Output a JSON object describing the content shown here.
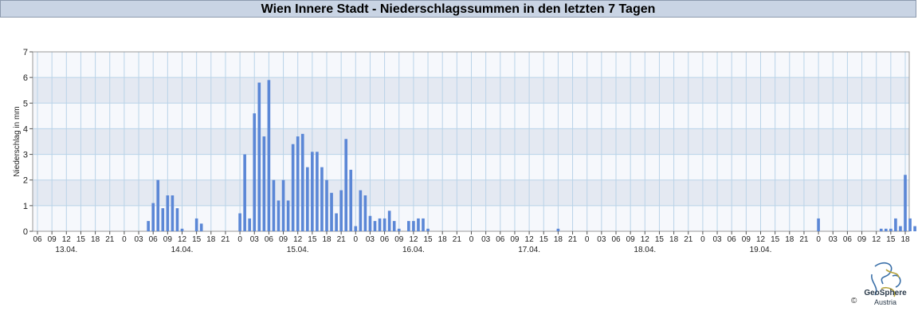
{
  "header": {
    "title": "Wien Innere Stadt - Niederschlagssummen in den letzten 7 Tagen"
  },
  "logo": {
    "name": "GeoSphere",
    "sub": "Austria",
    "copyright": "©"
  },
  "colors": {
    "bar": "#5b87d6",
    "band": "#e4e9f2",
    "plot_bg": "#f6f8fc",
    "grid": "#b9d3e8",
    "title_bg": "#c9d4e4"
  },
  "chart_data": {
    "type": "bar",
    "title": "Wien Innere Stadt - Niederschlagssummen in den letzten 7 Tagen",
    "xlabel": "",
    "ylabel": "Niederschlag in mm",
    "ylim": [
      0,
      7
    ],
    "yticks": [
      0,
      1,
      2,
      3,
      4,
      5,
      6,
      7
    ],
    "grid": true,
    "hour_labels": [
      "06",
      "09",
      "12",
      "15",
      "18",
      "21",
      "0",
      "03",
      "06",
      "09",
      "12",
      "15",
      "18",
      "21",
      "0",
      "03",
      "06",
      "09",
      "12",
      "15",
      "18",
      "21",
      "0",
      "03",
      "06",
      "09",
      "12",
      "15",
      "18",
      "21",
      "0",
      "03",
      "06",
      "09",
      "12",
      "15",
      "18",
      "21",
      "0",
      "03",
      "06",
      "09",
      "12",
      "15",
      "18",
      "21",
      "0",
      "03",
      "06",
      "09",
      "12",
      "15",
      "18",
      "21",
      "0",
      "03",
      "06",
      "09",
      "12",
      "15",
      "18"
    ],
    "day_labels": [
      "13.04.",
      "14.04.",
      "15.04.",
      "16.04.",
      "17.04.",
      "18.04.",
      "19.04."
    ],
    "values": [
      0,
      0,
      0,
      0,
      0,
      0,
      0,
      0,
      0,
      0,
      0,
      0,
      0,
      0,
      0,
      0,
      0,
      0,
      0,
      0,
      0,
      0,
      0,
      0.4,
      1.1,
      2.0,
      0.9,
      1.4,
      1.4,
      0.9,
      0.1,
      0,
      0,
      0.5,
      0.3,
      0,
      0,
      0,
      0,
      0,
      0,
      0,
      0.7,
      3.0,
      0.5,
      4.6,
      5.8,
      3.7,
      5.9,
      2.0,
      1.2,
      2.0,
      1.2,
      3.4,
      3.7,
      3.8,
      2.5,
      3.1,
      3.1,
      2.5,
      2.0,
      1.5,
      0.7,
      1.6,
      3.6,
      2.4,
      0.2,
      1.6,
      1.4,
      0.6,
      0.4,
      0.5,
      0.5,
      0.8,
      0.4,
      0.1,
      0,
      0.4,
      0.4,
      0.5,
      0.5,
      0.1,
      0,
      0,
      0,
      0,
      0,
      0,
      0,
      0,
      0,
      0,
      0,
      0,
      0,
      0,
      0,
      0,
      0,
      0,
      0,
      0,
      0,
      0,
      0,
      0,
      0,
      0,
      0.1,
      0,
      0,
      0,
      0,
      0,
      0,
      0,
      0,
      0,
      0,
      0,
      0,
      0,
      0,
      0,
      0,
      0,
      0,
      0,
      0,
      0,
      0,
      0,
      0,
      0,
      0,
      0,
      0,
      0,
      0,
      0,
      0,
      0,
      0,
      0,
      0,
      0,
      0,
      0,
      0,
      0,
      0,
      0,
      0,
      0,
      0,
      0,
      0,
      0,
      0,
      0,
      0,
      0,
      0.5,
      0,
      0,
      0,
      0,
      0,
      0,
      0,
      0,
      0,
      0,
      0,
      0,
      0.1,
      0.1,
      0.1,
      0.5,
      0.2,
      2.2,
      0.5,
      0.2,
      0,
      0,
      0,
      0,
      0,
      0
    ]
  }
}
